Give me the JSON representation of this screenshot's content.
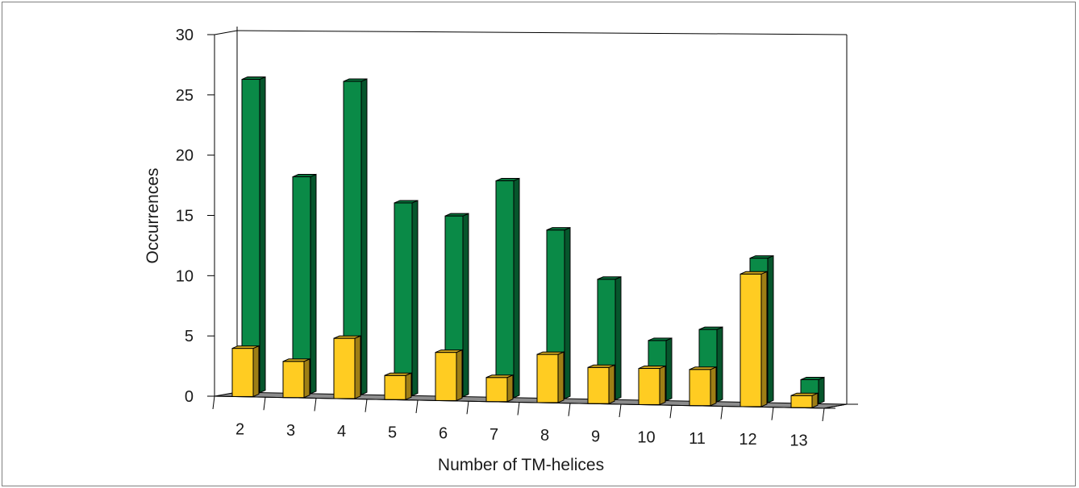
{
  "chart_data": {
    "type": "bar",
    "xlabel": "Number of TM-helices",
    "ylabel": "Occurrences",
    "ylim": [
      0,
      30
    ],
    "yticks": [
      "0",
      "5",
      "10",
      "15",
      "20",
      "25",
      "30"
    ],
    "categories": [
      "2",
      "3",
      "4",
      "5",
      "6",
      "7",
      "8",
      "9",
      "10",
      "11",
      "12",
      "13"
    ],
    "series": [
      {
        "values": [
          26,
          18,
          26,
          16,
          15,
          18,
          14,
          10,
          5,
          6,
          12,
          2
        ],
        "color": "#0a8a47"
      },
      {
        "values": [
          4,
          3,
          5,
          2,
          4,
          2,
          4,
          3,
          3,
          3,
          11,
          1
        ],
        "color": "#ffcc22"
      }
    ],
    "grid": false,
    "legend": "none",
    "style": "3d-clustered-depth"
  }
}
